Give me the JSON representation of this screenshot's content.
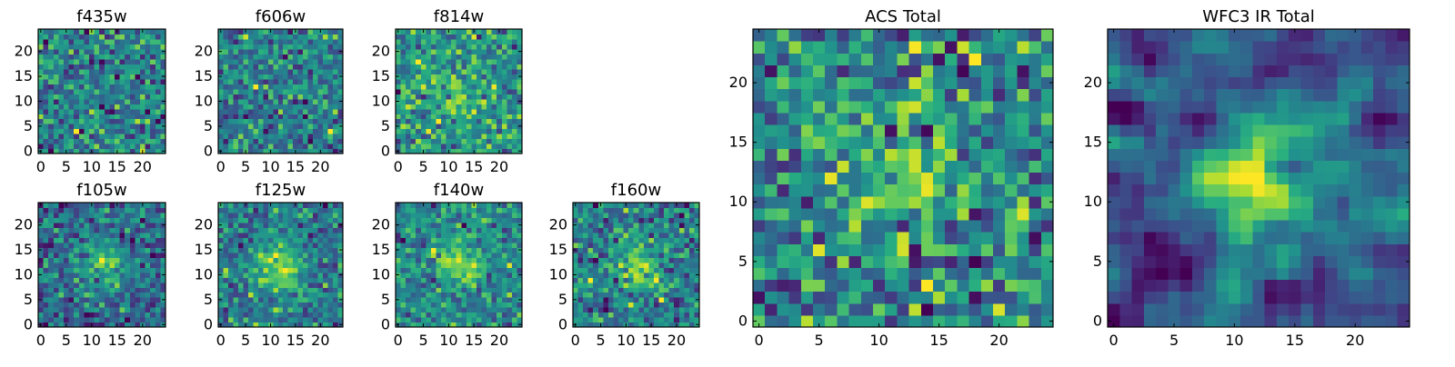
{
  "chart_data": [
    {
      "type": "heatmap",
      "title": "f435w",
      "xlabel": "",
      "ylabel": "",
      "xlim": [
        -0.5,
        24.5
      ],
      "ylim": [
        -0.5,
        24.5
      ],
      "x_ticks": [
        0,
        5,
        10,
        15,
        20
      ],
      "y_ticks": [
        0,
        5,
        10,
        15,
        20
      ],
      "grid": false,
      "colormap": "viridis",
      "pattern": "noise"
    },
    {
      "type": "heatmap",
      "title": "f606w",
      "xlabel": "",
      "ylabel": "",
      "xlim": [
        -0.5,
        24.5
      ],
      "ylim": [
        -0.5,
        24.5
      ],
      "x_ticks": [
        0,
        5,
        10,
        15,
        20
      ],
      "y_ticks": [
        0,
        5,
        10,
        15,
        20
      ],
      "grid": false,
      "colormap": "viridis",
      "pattern": "noise"
    },
    {
      "type": "heatmap",
      "title": "f814w",
      "xlabel": "",
      "ylabel": "",
      "xlim": [
        -0.5,
        24.5
      ],
      "ylim": [
        -0.5,
        24.5
      ],
      "x_ticks": [
        0,
        5,
        10,
        15,
        20
      ],
      "y_ticks": [
        0,
        5,
        10,
        15,
        20
      ],
      "grid": false,
      "colormap": "viridis",
      "pattern": "faint-source"
    },
    {
      "type": "heatmap",
      "title": "f105w",
      "xlabel": "",
      "ylabel": "",
      "xlim": [
        -0.5,
        24.5
      ],
      "ylim": [
        -0.5,
        24.5
      ],
      "x_ticks": [
        0,
        5,
        10,
        15,
        20
      ],
      "y_ticks": [
        0,
        5,
        10,
        15,
        20
      ],
      "grid": false,
      "colormap": "viridis",
      "pattern": "central-source"
    },
    {
      "type": "heatmap",
      "title": "f125w",
      "xlabel": "",
      "ylabel": "",
      "xlim": [
        -0.5,
        24.5
      ],
      "ylim": [
        -0.5,
        24.5
      ],
      "x_ticks": [
        0,
        5,
        10,
        15,
        20
      ],
      "y_ticks": [
        0,
        5,
        10,
        15,
        20
      ],
      "grid": false,
      "colormap": "viridis",
      "pattern": "central-source"
    },
    {
      "type": "heatmap",
      "title": "f140w",
      "xlabel": "",
      "ylabel": "",
      "xlim": [
        -0.5,
        24.5
      ],
      "ylim": [
        -0.5,
        24.5
      ],
      "x_ticks": [
        0,
        5,
        10,
        15,
        20
      ],
      "y_ticks": [
        0,
        5,
        10,
        15,
        20
      ],
      "grid": false,
      "colormap": "viridis",
      "pattern": "central-source"
    },
    {
      "type": "heatmap",
      "title": "f160w",
      "xlabel": "",
      "ylabel": "",
      "xlim": [
        -0.5,
        24.5
      ],
      "ylim": [
        -0.5,
        24.5
      ],
      "x_ticks": [
        0,
        5,
        10,
        15,
        20
      ],
      "y_ticks": [
        0,
        5,
        10,
        15,
        20
      ],
      "grid": false,
      "colormap": "viridis",
      "pattern": "central-source"
    },
    {
      "type": "heatmap",
      "title": "ACS Total",
      "xlabel": "",
      "ylabel": "",
      "xlim": [
        -0.5,
        24.5
      ],
      "ylim": [
        -0.5,
        24.5
      ],
      "x_ticks": [
        0,
        5,
        10,
        15,
        20
      ],
      "y_ticks": [
        0,
        5,
        10,
        15,
        20
      ],
      "grid": false,
      "colormap": "viridis",
      "pattern": "faint-source"
    },
    {
      "type": "heatmap",
      "title": "WFC3 IR Total",
      "xlabel": "",
      "ylabel": "",
      "xlim": [
        -0.5,
        24.5
      ],
      "ylim": [
        -0.5,
        24.5
      ],
      "x_ticks": [
        0,
        5,
        10,
        15,
        20
      ],
      "y_ticks": [
        0,
        5,
        10,
        15,
        20
      ],
      "grid": false,
      "colormap": "viridis",
      "pattern": "central-source-smooth"
    }
  ],
  "colors": {
    "frame": "#000000",
    "background": "#ffffff",
    "viridis_low": "#440154",
    "viridis_mid": "#21918c",
    "viridis_high": "#fde725"
  }
}
